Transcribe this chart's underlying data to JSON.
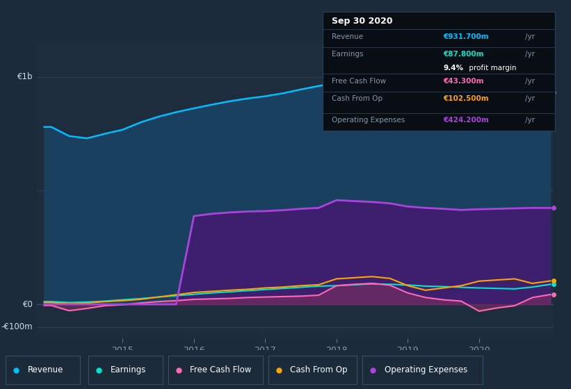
{
  "bg_color": "#1c2b3a",
  "plot_bg_color": "#1e2d3d",
  "ylim": [
    -150,
    1150
  ],
  "xlim_start": 2013.8,
  "xlim_end": 2021.05,
  "years": [
    2013.9,
    2014.0,
    2014.25,
    2014.5,
    2014.75,
    2015.0,
    2015.25,
    2015.5,
    2015.75,
    2016.0,
    2016.25,
    2016.5,
    2016.75,
    2017.0,
    2017.25,
    2017.5,
    2017.75,
    2018.0,
    2018.25,
    2018.5,
    2018.75,
    2019.0,
    2019.25,
    2019.5,
    2019.75,
    2020.0,
    2020.25,
    2020.5,
    2020.75,
    2021.0
  ],
  "revenue": [
    780,
    780,
    740,
    730,
    750,
    768,
    800,
    825,
    845,
    862,
    878,
    893,
    905,
    915,
    928,
    945,
    960,
    975,
    988,
    990,
    983,
    972,
    963,
    970,
    976,
    978,
    976,
    970,
    952,
    932
  ],
  "earnings": [
    12,
    12,
    8,
    10,
    14,
    20,
    25,
    32,
    38,
    44,
    50,
    55,
    60,
    65,
    70,
    75,
    80,
    82,
    86,
    90,
    88,
    85,
    80,
    78,
    75,
    72,
    70,
    68,
    76,
    88
  ],
  "free_cash_flow": [
    -5,
    -5,
    -28,
    -18,
    -6,
    -2,
    6,
    12,
    16,
    22,
    24,
    26,
    30,
    32,
    34,
    36,
    40,
    82,
    88,
    92,
    84,
    50,
    30,
    20,
    14,
    -30,
    -16,
    -6,
    30,
    43
  ],
  "cash_from_op": [
    8,
    8,
    2,
    6,
    12,
    16,
    22,
    32,
    42,
    52,
    57,
    62,
    66,
    72,
    76,
    82,
    86,
    112,
    117,
    122,
    114,
    82,
    62,
    72,
    82,
    102,
    107,
    112,
    92,
    103
  ],
  "op_expenses": [
    0,
    0,
    0,
    0,
    0,
    0,
    0,
    0,
    0,
    388,
    398,
    404,
    408,
    410,
    414,
    420,
    424,
    458,
    454,
    450,
    444,
    430,
    424,
    420,
    415,
    418,
    420,
    422,
    424,
    424
  ],
  "revenue_color": "#00bfff",
  "earnings_color": "#00e5cc",
  "fcf_color": "#ff69b4",
  "cashop_color": "#ffa500",
  "opex_color": "#aa44dd",
  "revenue_fill": "#1a4060",
  "opex_fill": "#3d1f6e",
  "fcf_fill": "#7b3060",
  "tooltip_bg": "#080e14",
  "tooltip_border": "#2a3f55",
  "label_color": "#8899aa",
  "text_color": "#ccddee",
  "sep_color": "#2a3a4a",
  "tooltip": {
    "date": "Sep 30 2020",
    "revenue_label": "Revenue",
    "revenue_val": "€931.700m /yr",
    "earnings_label": "Earnings",
    "earnings_val": "€87.800m /yr",
    "profit_pct": "9.4%",
    "profit_text": " profit margin",
    "fcf_label": "Free Cash Flow",
    "fcf_val": "€43.300m /yr",
    "cashop_label": "Cash From Op",
    "cashop_val": "€102.500m /yr",
    "opex_label": "Operating Expenses",
    "opex_val": "€424.200m /yr"
  },
  "legend_items": [
    "Revenue",
    "Earnings",
    "Free Cash Flow",
    "Cash From Op",
    "Operating Expenses"
  ],
  "legend_colors": [
    "#00bfff",
    "#00e5cc",
    "#ff69b4",
    "#ffa500",
    "#aa44dd"
  ],
  "xticks": [
    2015,
    2016,
    2017,
    2018,
    2019,
    2020
  ],
  "ytick_labels": [
    "€1b",
    "€0",
    "-€100m"
  ],
  "ytick_values": [
    1000,
    0,
    -100
  ]
}
